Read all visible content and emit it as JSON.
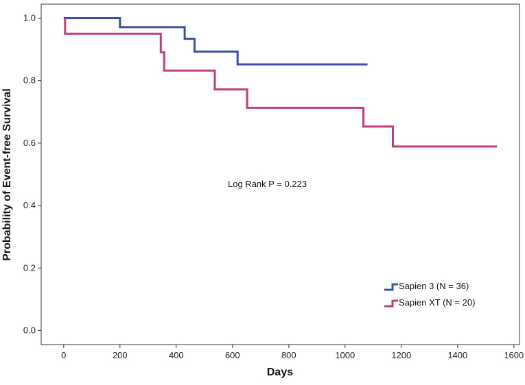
{
  "chart_data": {
    "type": "line",
    "subtype": "kaplan-meier-step",
    "title": "",
    "xlabel": "Days",
    "ylabel": "Probability of Event-free Survival",
    "xlim": [
      -80,
      1620
    ],
    "ylim": [
      -0.045,
      1.045
    ],
    "xticks": [
      0,
      200,
      400,
      600,
      800,
      1000,
      1200,
      1400,
      1600
    ],
    "xtick_labels": [
      "0",
      "200",
      "400",
      "600",
      "800",
      "1000",
      "1200",
      "1400",
      "1600"
    ],
    "yticks": [
      0.0,
      0.2,
      0.4,
      0.6,
      0.8,
      1.0
    ],
    "ytick_labels": [
      "0.0",
      "0.2",
      "0.4",
      "0.6",
      "0.8",
      "1.0"
    ],
    "grid": false,
    "legend_position": "bottom-right",
    "annotation": "Log Rank P = 0.223",
    "series": [
      {
        "name": "Sapien 3 (N = 36)",
        "color": "#3a4fa6",
        "points": [
          [
            0,
            1.0
          ],
          [
            200,
            1.0
          ],
          [
            200,
            0.971
          ],
          [
            430,
            0.971
          ],
          [
            430,
            0.934
          ],
          [
            465,
            0.934
          ],
          [
            465,
            0.893
          ],
          [
            618,
            0.893
          ],
          [
            618,
            0.852
          ],
          [
            1080,
            0.852
          ]
        ]
      },
      {
        "name": "Sapien XT (N = 20)",
        "color": "#c23c7e",
        "points": [
          [
            5,
            1.0
          ],
          [
            5,
            0.95
          ],
          [
            345,
            0.95
          ],
          [
            345,
            0.891
          ],
          [
            357,
            0.891
          ],
          [
            357,
            0.832
          ],
          [
            537,
            0.832
          ],
          [
            537,
            0.772
          ],
          [
            652,
            0.772
          ],
          [
            652,
            0.713
          ],
          [
            1065,
            0.713
          ],
          [
            1065,
            0.653
          ],
          [
            1170,
            0.653
          ],
          [
            1170,
            0.589
          ],
          [
            1540,
            0.589
          ]
        ]
      }
    ]
  }
}
